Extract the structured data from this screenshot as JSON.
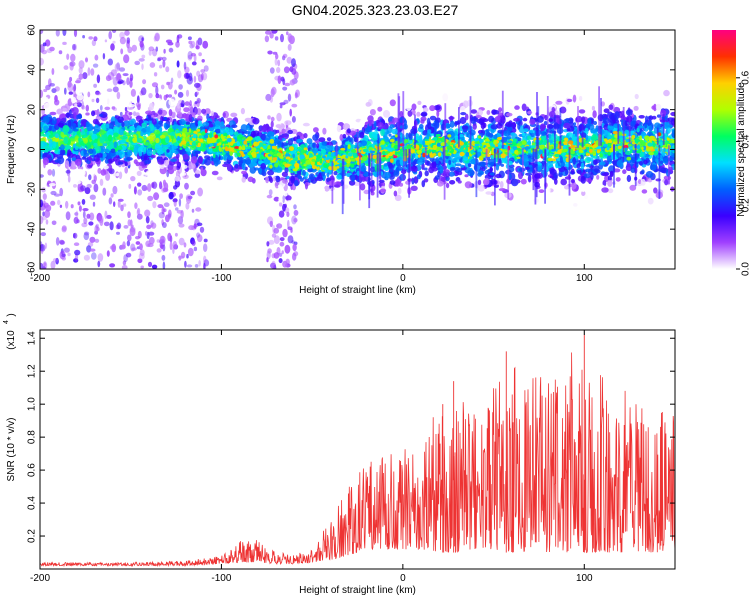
{
  "title": "GN04.2025.323.23.03.E27",
  "chart_data": [
    {
      "type": "heatmap",
      "title": "GN04.2025.323.23.03.E27",
      "xlabel": "Height of straight line (km)",
      "ylabel": "Frequency (Hz)",
      "xlim": [
        -200,
        150
      ],
      "ylim": [
        -60,
        60
      ],
      "xticks": [
        -200,
        -100,
        0,
        100
      ],
      "yticks": [
        -60,
        -40,
        -20,
        0,
        20,
        40,
        60
      ],
      "colorbar": {
        "label": "Normalized spectral amplitude",
        "range": [
          0.0,
          0.75
        ],
        "ticks": [
          0.0,
          0.2,
          0.4,
          0.6
        ],
        "tick_labels": [
          "0.0",
          "0.2",
          "0.4",
          "0.6"
        ],
        "colormap": [
          "#ffffff",
          "#a040ff",
          "#3a00ff",
          "#0060ff",
          "#00e0ff",
          "#00ff60",
          "#b0ff00",
          "#ffd000",
          "#ff3000",
          "#ff0080"
        ]
      },
      "ridge": {
        "description_x": [
          -200,
          -150,
          -120,
          -100,
          -80,
          -60,
          -40,
          -20,
          0,
          20,
          40,
          60,
          80,
          100,
          120,
          150
        ],
        "frequency_hz": [
          5,
          5,
          6,
          3,
          0,
          -5,
          -6,
          -2,
          0,
          2,
          0,
          1,
          0,
          1,
          3,
          2
        ]
      },
      "noise_regions": [
        [
          -200,
          -108
        ],
        [
          -75,
          -58
        ]
      ]
    },
    {
      "type": "line",
      "xlabel": "Height of straight line (km)",
      "ylabel": "SNR (10 * v/v)",
      "scale_label": "(x10",
      "scale_exp": "4",
      "xlim": [
        -200,
        150
      ],
      "ylim": [
        0,
        1.45
      ],
      "xticks": [
        -200,
        -100,
        0,
        100
      ],
      "yticks": [
        0.2,
        0.4,
        0.6,
        0.8,
        1.0,
        1.2,
        1.4
      ],
      "ytick_labels": [
        "0.2",
        "0.4",
        "0.6",
        "0.8",
        "1.0",
        "1.2",
        "1.4"
      ],
      "series": [
        {
          "name": "SNR",
          "color": "#ee3333",
          "envelope_x": [
            -200,
            -150,
            -120,
            -100,
            -90,
            -80,
            -70,
            -60,
            -50,
            -40,
            -30,
            -20,
            -10,
            0,
            10,
            20,
            30,
            40,
            50,
            60,
            80,
            100,
            120,
            150
          ],
          "envelope_max": [
            0.04,
            0.04,
            0.05,
            0.08,
            0.17,
            0.18,
            0.1,
            0.09,
            0.12,
            0.3,
            0.5,
            0.65,
            0.7,
            0.72,
            0.8,
            0.98,
            1.05,
            0.95,
            1.1,
            1.25,
            1.15,
            1.42,
            1.1,
            0.95
          ],
          "envelope_min": [
            0.02,
            0.02,
            0.02,
            0.03,
            0.04,
            0.04,
            0.03,
            0.03,
            0.04,
            0.05,
            0.08,
            0.12,
            0.12,
            0.1,
            0.12,
            0.1,
            0.1,
            0.12,
            0.12,
            0.1,
            0.1,
            0.1,
            0.1,
            0.1
          ],
          "peak_highlights": [
            [
              22,
              1.0
            ],
            [
              28,
              1.14
            ],
            [
              57,
              1.32
            ],
            [
              100,
              1.42
            ]
          ]
        }
      ]
    }
  ]
}
